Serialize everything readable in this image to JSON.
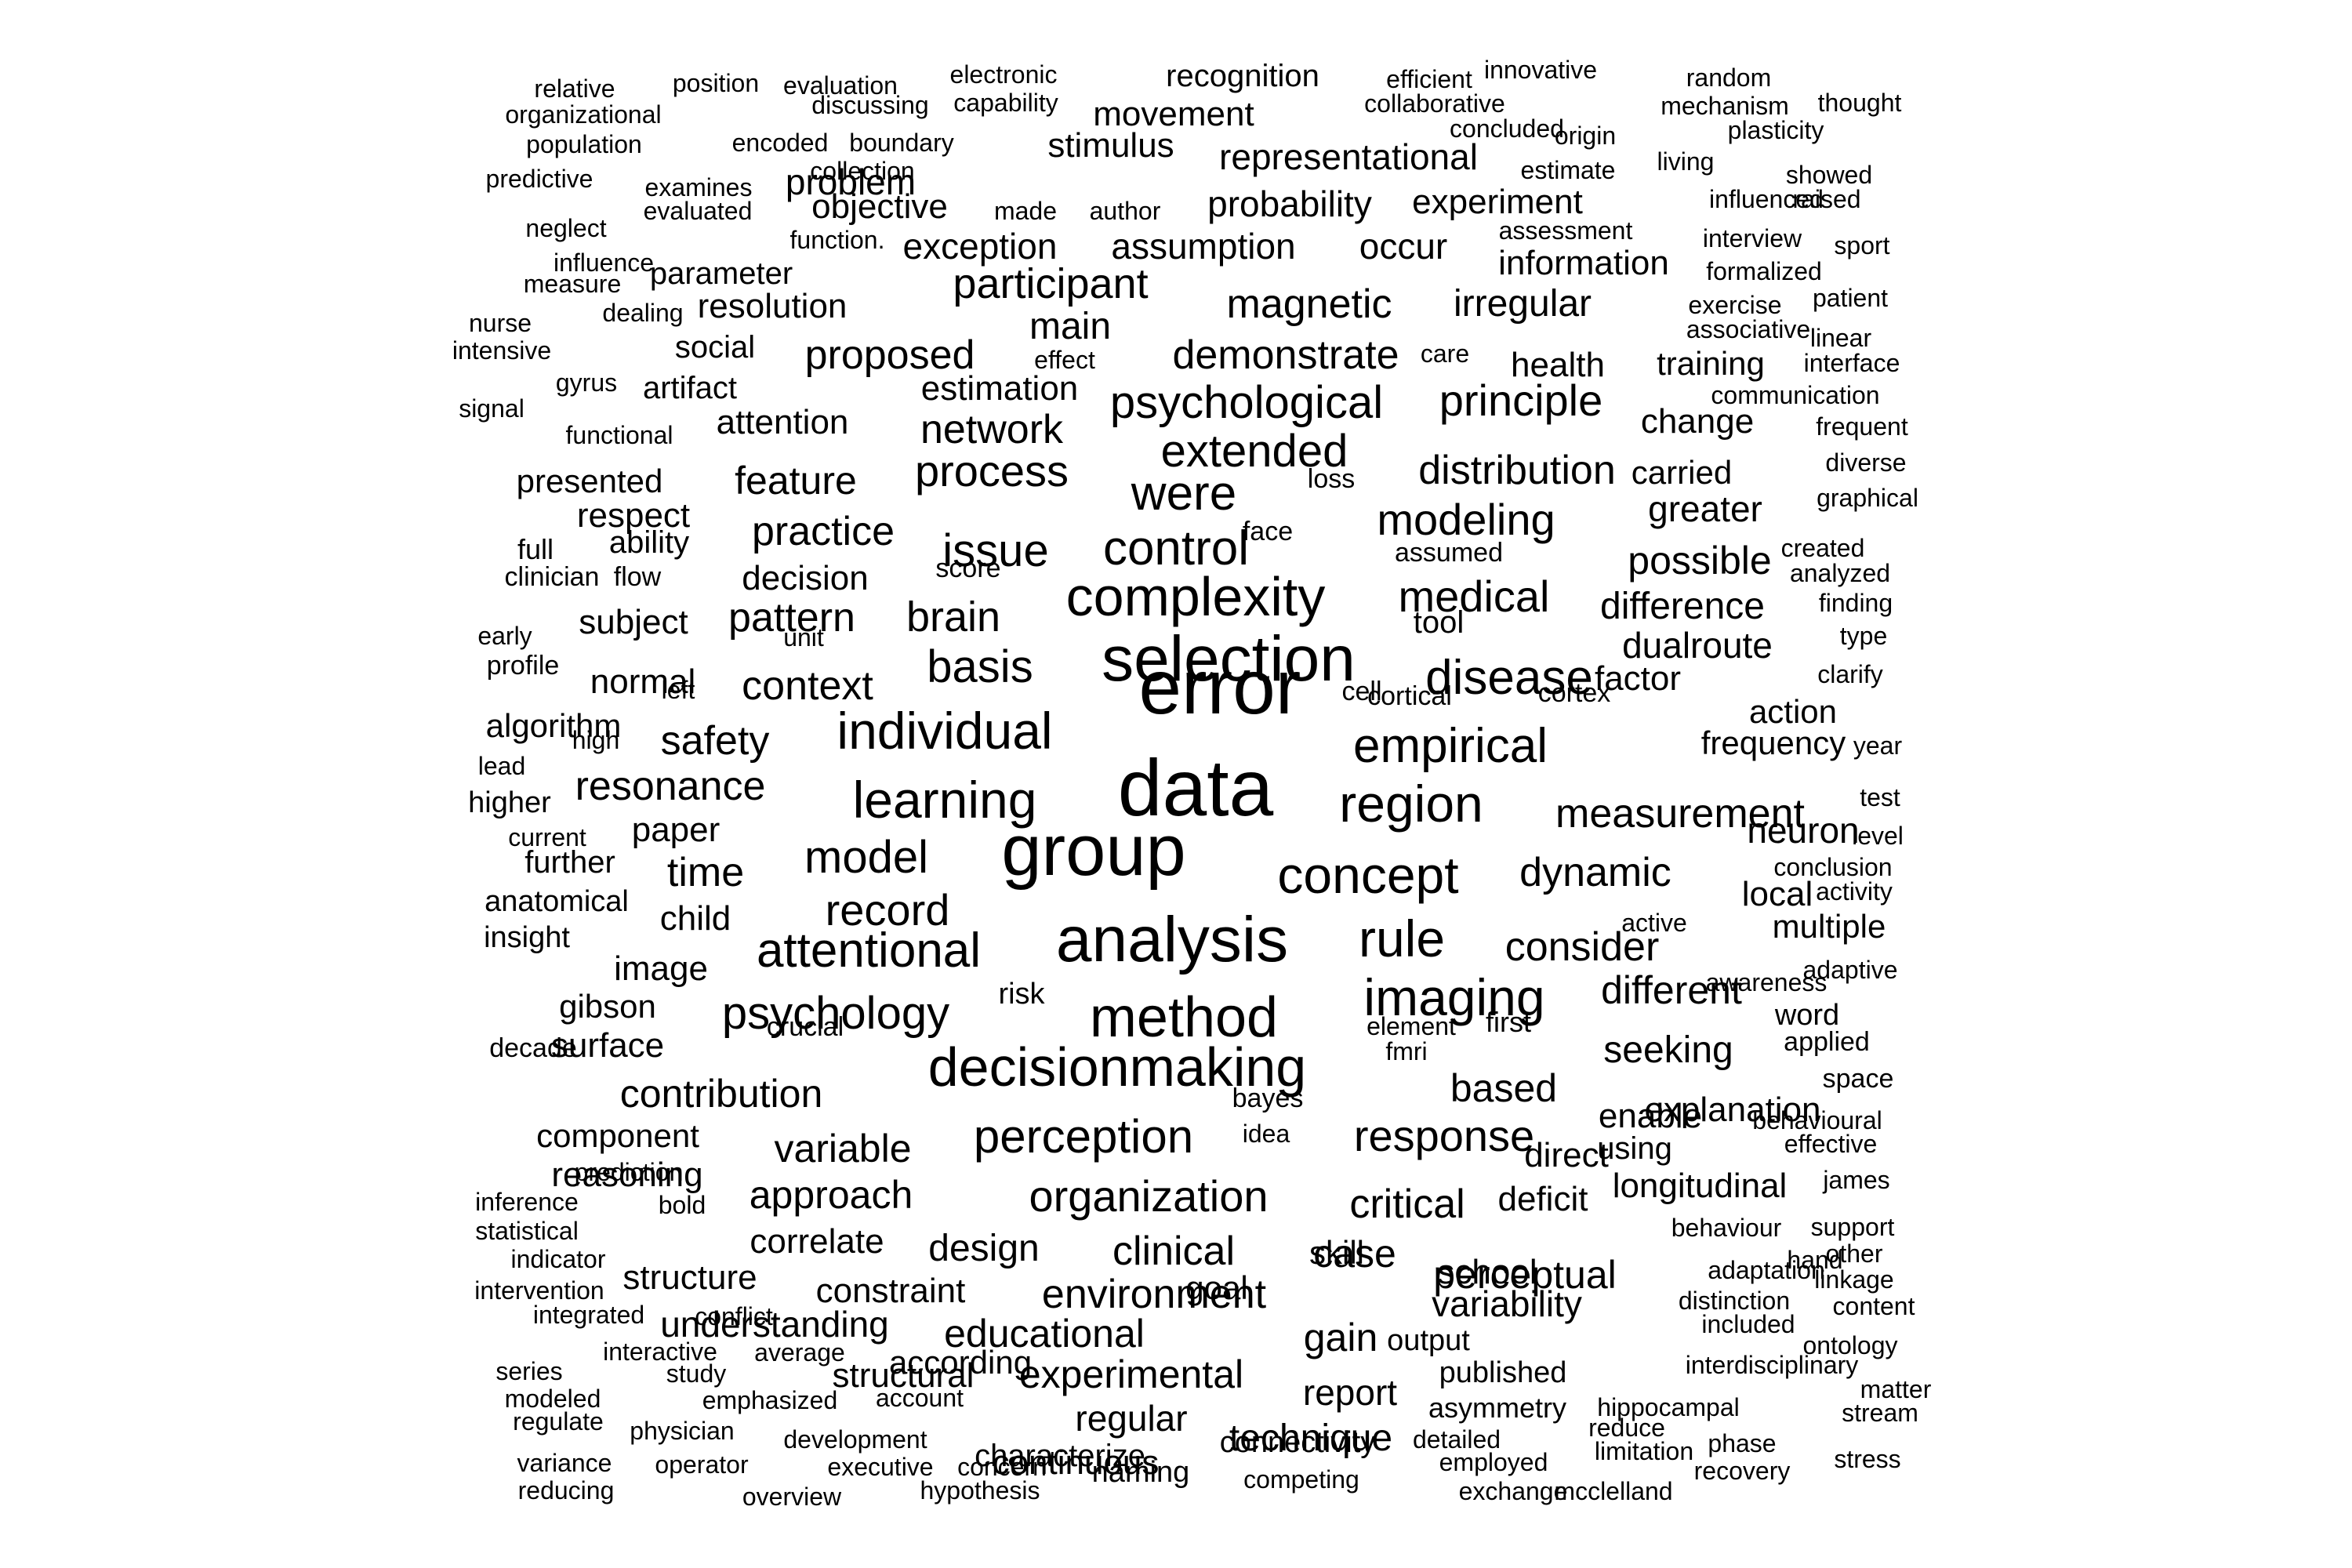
{
  "colors": {
    "background": "#ffffff",
    "text": "#000000"
  },
  "words": [
    "error",
    "data",
    "group",
    "selection",
    "analysis",
    "method",
    "decisionmaking",
    "complexity",
    "individual",
    "learning",
    "concept",
    "region",
    "imaging",
    "control",
    "rule",
    "empirical",
    "disease",
    "attentional",
    "perception",
    "psychology",
    "organization",
    "basis",
    "issue",
    "psychological",
    "extended",
    "were",
    "response",
    "medical",
    "model",
    "record",
    "process",
    "network",
    "magnetic",
    "demonstrate",
    "modeling",
    "distribution",
    "brain",
    "participant",
    "proposed",
    "practice",
    "safety",
    "resonance",
    "context",
    "pattern",
    "time",
    "measurement",
    "dynamic",
    "consider",
    "different",
    "seeking",
    "based",
    "explanation",
    "contribution",
    "variable",
    "approach",
    "clinical",
    "environment",
    "critical",
    "case",
    "perceptual",
    "educational",
    "experimental",
    "technique",
    "gain",
    "report",
    "regular",
    "continuous",
    "understanding",
    "structural",
    "design",
    "correlate",
    "constraint",
    "structure",
    "reasoning",
    "component",
    "surface",
    "gibson",
    "image",
    "paper",
    "child",
    "feature",
    "decision",
    "subject",
    "normal",
    "algorithm",
    "respect",
    "presented",
    "principle",
    "health",
    "irregular",
    "assumption",
    "occur",
    "exception",
    "problem",
    "objective",
    "probability",
    "experiment",
    "representational",
    "movement",
    "stimulus",
    "recognition",
    "information",
    "resolution",
    "parameter",
    "social",
    "artifact",
    "attention",
    "estimation",
    "main",
    "possible",
    "difference",
    "dualroute",
    "factor",
    "frequency",
    "greater",
    "carried",
    "change",
    "training",
    "action",
    "neuron",
    "local",
    "multiple",
    "enable",
    "longitudinal",
    "direct",
    "using",
    "deficit",
    "school",
    "variability",
    "according",
    "characterize",
    "connectivity",
    "naming",
    "published",
    "output",
    "asymmetry",
    "goal",
    "skill",
    "further",
    "anatomical",
    "insight",
    "higher",
    "ability",
    "full",
    "clinician",
    "flow",
    "score",
    "tool",
    "assumed",
    "face",
    "loss",
    "cell",
    "cortical",
    "cortex",
    "left",
    "unit",
    "high",
    "lead",
    "early",
    "profile",
    "current",
    "risk",
    "crucial",
    "element",
    "first",
    "fmri",
    "bayes",
    "idea",
    "decade",
    "word",
    "applied",
    "space",
    "adaptive",
    "awareness",
    "active",
    "conclusion",
    "activity",
    "level",
    "test",
    "year",
    "clarify",
    "type",
    "finding",
    "analyzed",
    "created",
    "graphical",
    "diverse",
    "frequent",
    "communication",
    "interface",
    "linear",
    "associative",
    "exercise",
    "patient",
    "formalized",
    "interview",
    "sport",
    "assessment",
    "influenced",
    "raised",
    "showed",
    "estimate",
    "living",
    "origin",
    "plasticity",
    "mechanism",
    "thought",
    "random",
    "innovative",
    "efficient",
    "collaborative",
    "concluded",
    "electronic",
    "capability",
    "evaluation",
    "discussing",
    "position",
    "relative",
    "organizational",
    "population",
    "encoded",
    "boundary",
    "collection",
    "predictive",
    "examines",
    "evaluated",
    "made",
    "author",
    "neglect",
    "function.",
    "influence",
    "measure",
    "nurse",
    "dealing",
    "intensive",
    "signal",
    "gyrus",
    "effect",
    "care",
    "functional",
    "inference",
    "statistical",
    "indicator",
    "intervention",
    "integrated",
    "conflict",
    "interactive",
    "series",
    "study",
    "average",
    "modeled",
    "regulate",
    "emphasized",
    "account",
    "physician",
    "variance",
    "operator",
    "development",
    "executive",
    "reducing",
    "overview",
    "concern",
    "hypothesis",
    "competing",
    "detailed",
    "employed",
    "exchange",
    "mcclelland",
    "limitation",
    "recovery",
    "phase",
    "reduce",
    "stress",
    "hippocampal",
    "stream",
    "matter",
    "interdisciplinary",
    "content",
    "hand",
    "included",
    "ontology",
    "linkage",
    "other",
    "distinction",
    "adaptation",
    "behaviour",
    "support",
    "james",
    "effective",
    "behavioural",
    "prediction",
    "bold"
  ]
}
